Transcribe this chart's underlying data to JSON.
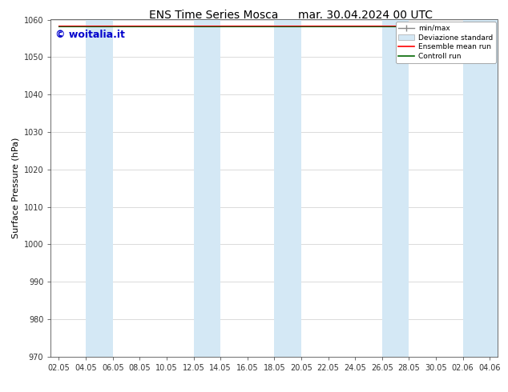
{
  "title": "ENS Time Series Mosca",
  "subtitle": "mar. 30.04.2024 00 UTC",
  "ylabel": "Surface Pressure (hPa)",
  "ylim": [
    970,
    1060
  ],
  "yticks": [
    970,
    980,
    990,
    1000,
    1010,
    1020,
    1030,
    1040,
    1050,
    1060
  ],
  "xtick_labels": [
    "02.05",
    "04.05",
    "06.05",
    "08.05",
    "10.05",
    "12.05",
    "14.05",
    "16.05",
    "18.05",
    "20.05",
    "22.05",
    "24.05",
    "26.05",
    "28.05",
    "30.05",
    "02.06",
    "04.06"
  ],
  "watermark": "© woitalia.it",
  "watermark_color": "#0000cc",
  "bg_color": "#ffffff",
  "plot_bg_color": "#ffffff",
  "shaded_band_color": "#d4e8f5",
  "shaded_band_alpha": 1.0,
  "legend_entries": [
    "min/max",
    "Deviazione standard",
    "Ensemble mean run",
    "Controll run"
  ],
  "mean_line_color": "#ff0000",
  "control_line_color": "#006600",
  "mean_value": 1058.5,
  "control_value": 1058.2,
  "title_fontsize": 10,
  "ylabel_fontsize": 8,
  "tick_fontsize": 7,
  "watermark_fontsize": 9
}
